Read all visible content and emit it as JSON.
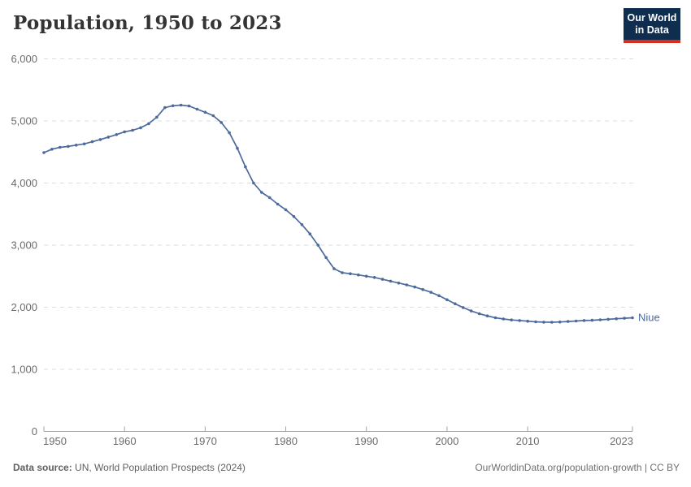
{
  "header": {
    "title": "Population, 1950 to 2023",
    "logo_line1": "Our World",
    "logo_line2": "in Data"
  },
  "colors": {
    "line": "#4c6a9c",
    "grid": "#dcdcdc",
    "axis": "#a3a3a3",
    "tick_text": "#6c6c6c",
    "logo_navy": "#0e2d4f",
    "logo_red": "#d62f1e"
  },
  "series_end_label": "Niue",
  "chart_data": {
    "type": "line",
    "title": "Population, 1950 to 2023",
    "xlabel": "",
    "ylabel": "",
    "xlim": [
      1950,
      2023
    ],
    "ylim": [
      0,
      6000
    ],
    "grid": "horizontal dashed",
    "legend_position": "end-of-line label",
    "markers": true,
    "y_ticks": [
      {
        "label": "0",
        "value": 0
      },
      {
        "label": "1,000",
        "value": 1000
      },
      {
        "label": "2,000",
        "value": 2000
      },
      {
        "label": "3,000",
        "value": 3000
      },
      {
        "label": "4,000",
        "value": 4000
      },
      {
        "label": "5,000",
        "value": 5000
      },
      {
        "label": "6,000",
        "value": 6000
      }
    ],
    "x_ticks": [
      {
        "label": "1950",
        "value": 1950
      },
      {
        "label": "1960",
        "value": 1960
      },
      {
        "label": "1970",
        "value": 1970
      },
      {
        "label": "1980",
        "value": 1980
      },
      {
        "label": "1990",
        "value": 1990
      },
      {
        "label": "2000",
        "value": 2000
      },
      {
        "label": "2010",
        "value": 2010
      },
      {
        "label": "2023",
        "value": 2023
      }
    ],
    "x": [
      1950,
      1951,
      1952,
      1953,
      1954,
      1955,
      1956,
      1957,
      1958,
      1959,
      1960,
      1961,
      1962,
      1963,
      1964,
      1965,
      1966,
      1967,
      1968,
      1969,
      1970,
      1971,
      1972,
      1973,
      1974,
      1975,
      1976,
      1977,
      1978,
      1979,
      1980,
      1981,
      1982,
      1983,
      1984,
      1985,
      1986,
      1987,
      1988,
      1989,
      1990,
      1991,
      1992,
      1993,
      1994,
      1995,
      1996,
      1997,
      1998,
      1999,
      2000,
      2001,
      2002,
      2003,
      2004,
      2005,
      2006,
      2007,
      2008,
      2009,
      2010,
      2011,
      2012,
      2013,
      2014,
      2015,
      2016,
      2017,
      2018,
      2019,
      2020,
      2021,
      2022,
      2023
    ],
    "series": [
      {
        "name": "Niue",
        "color": "#4c6a9c",
        "values": [
          4490,
          4545,
          4575,
          4590,
          4610,
          4630,
          4665,
          4700,
          4740,
          4780,
          4825,
          4850,
          4890,
          4955,
          5060,
          5215,
          5245,
          5255,
          5240,
          5190,
          5140,
          5085,
          4975,
          4810,
          4560,
          4260,
          4000,
          3850,
          3765,
          3660,
          3570,
          3460,
          3330,
          3180,
          3000,
          2800,
          2620,
          2555,
          2540,
          2520,
          2500,
          2480,
          2450,
          2420,
          2390,
          2360,
          2325,
          2285,
          2240,
          2185,
          2120,
          2055,
          1995,
          1940,
          1895,
          1860,
          1830,
          1810,
          1795,
          1785,
          1775,
          1765,
          1760,
          1758,
          1762,
          1770,
          1778,
          1785,
          1790,
          1798,
          1805,
          1815,
          1822,
          1830
        ]
      }
    ]
  },
  "footer": {
    "source_label": "Data source:",
    "source_text": " UN, World Population Prospects (2024)",
    "credit": "OurWorldinData.org/population-growth | CC BY"
  }
}
